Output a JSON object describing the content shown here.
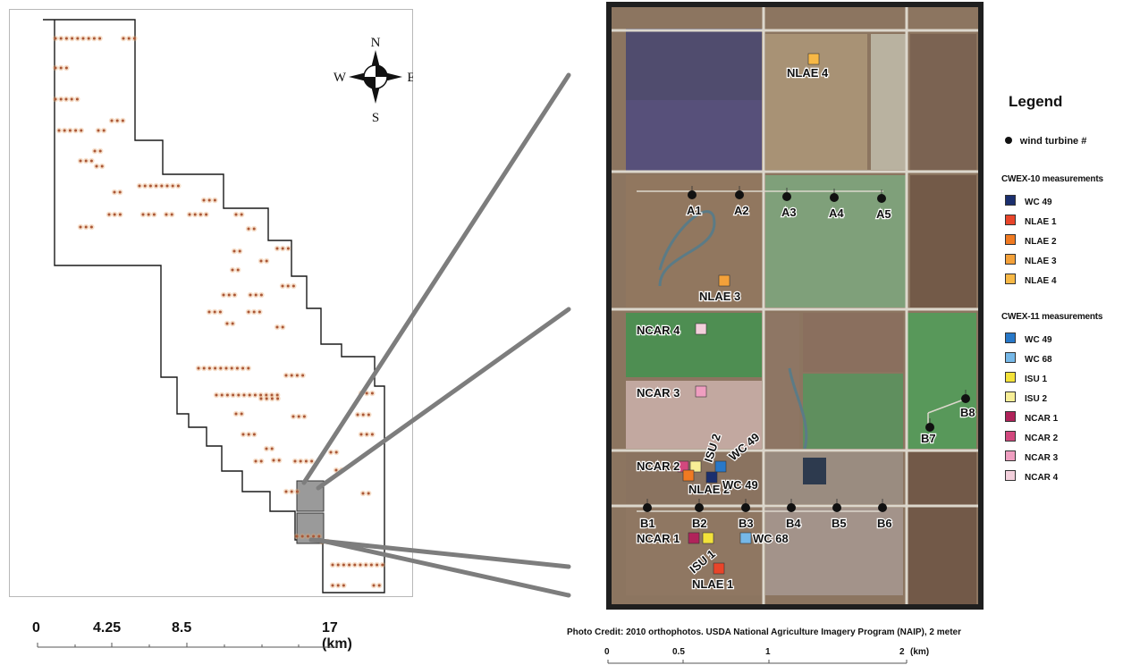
{
  "compass": {
    "n": "N",
    "s": "S",
    "e": "E",
    "w": "W"
  },
  "left_scale": {
    "ticks": [
      "0",
      "4.25",
      "8.5",
      "17 (km)"
    ]
  },
  "turbines": [
    {
      "id": "A1",
      "label": "A1"
    },
    {
      "id": "A2",
      "label": "A2"
    },
    {
      "id": "A3",
      "label": "A3"
    },
    {
      "id": "A4",
      "label": "A4"
    },
    {
      "id": "A5",
      "label": "A5"
    },
    {
      "id": "B1",
      "label": "B1"
    },
    {
      "id": "B2",
      "label": "B2"
    },
    {
      "id": "B3",
      "label": "B3"
    },
    {
      "id": "B4",
      "label": "B4"
    },
    {
      "id": "B5",
      "label": "B5"
    },
    {
      "id": "B6",
      "label": "B6"
    },
    {
      "id": "B7",
      "label": "B7"
    },
    {
      "id": "B8",
      "label": "B8"
    }
  ],
  "site_labels": {
    "nlae4": "NLAE 4",
    "nlae3": "NLAE 3",
    "ncar4": "NCAR 4",
    "ncar3": "NCAR 3",
    "ncar2": "NCAR 2",
    "isu2": "ISU 2",
    "wc49_rot": "WC 49",
    "nlae2": "NLAE 2",
    "wc49": "WC 49",
    "ncar1": "NCAR 1",
    "wc68": "WC 68",
    "isu1": "ISU 1",
    "nlae1": "NLAE 1"
  },
  "legend": {
    "title": "Legend",
    "turbine_label": "wind turbine #",
    "cwex10": {
      "heading": "CWEX-10 measurements",
      "items": [
        {
          "label": "WC 49",
          "color": "#1b2f6e",
          "icon": "square-icon"
        },
        {
          "label": "NLAE 1",
          "color": "#e8452a",
          "icon": "person-icon"
        },
        {
          "label": "NLAE 2",
          "color": "#f07a22",
          "icon": "person-icon"
        },
        {
          "label": "NLAE 3",
          "color": "#f3a13a",
          "icon": "person-icon"
        },
        {
          "label": "NLAE 4",
          "color": "#f7b846",
          "icon": "person-icon"
        }
      ]
    },
    "cwex11": {
      "heading": "CWEX-11 measurements",
      "items": [
        {
          "label": "WC 49",
          "color": "#2878c8",
          "icon": "square-icon"
        },
        {
          "label": "WC 68",
          "color": "#76b8e8",
          "icon": "square-icon"
        },
        {
          "label": "ISU 1",
          "color": "#f3e23a",
          "icon": "person-icon"
        },
        {
          "label": "ISU 2",
          "color": "#f7ee96",
          "icon": "person-icon"
        },
        {
          "label": "NCAR 1",
          "color": "#b0235a",
          "icon": "person-icon"
        },
        {
          "label": "NCAR 2",
          "color": "#d2487e",
          "icon": "person-icon"
        },
        {
          "label": "NCAR 3",
          "color": "#ef9ec0",
          "icon": "person-icon"
        },
        {
          "label": "NCAR 4",
          "color": "#f3d0dc",
          "icon": "person-icon"
        }
      ]
    }
  },
  "photo_credit": "Photo Credit:  2010 orthophotos. USDA National Agriculture Imagery Program (NAIP), 2 meter",
  "right_scale": {
    "ticks": [
      "0",
      "0.5",
      "1",
      "2"
    ],
    "unit": "(km)"
  }
}
